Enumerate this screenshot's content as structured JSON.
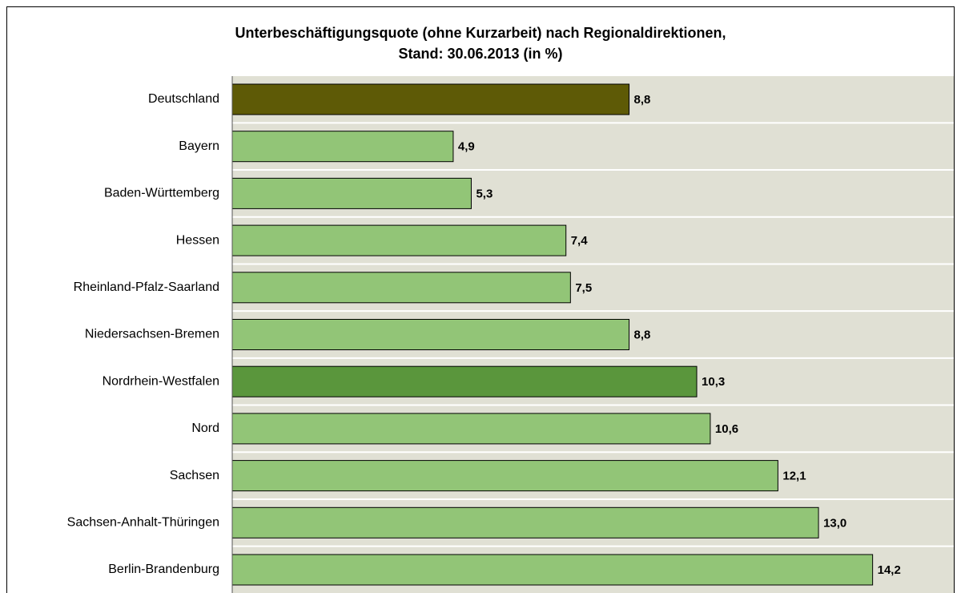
{
  "chart_data": {
    "type": "barh",
    "title": [
      "Unterbeschäftigungsquote (ohne Kurzarbeit) nach Regionaldirektionen,",
      "Stand: 30.06.2013  (in %)"
    ],
    "categories": [
      "Deutschland",
      "Bayern",
      "Baden-Württemberg",
      "Hessen",
      "Rheinland-Pfalz-Saarland",
      "Niedersachsen-Bremen",
      "Nordrhein-Westfalen",
      "Nord",
      "Sachsen",
      "Sachsen-Anhalt-Thüringen",
      "Berlin-Brandenburg"
    ],
    "values": [
      8.8,
      4.9,
      5.3,
      7.4,
      7.5,
      8.8,
      10.3,
      10.6,
      12.1,
      13.0,
      14.2
    ],
    "value_labels": [
      "8,8",
      "4,9",
      "5,3",
      "7,4",
      "7,5",
      "8,8",
      "10,3",
      "10,6",
      "12,1",
      "13,0",
      "14,2"
    ],
    "colors": [
      "#5e5a06",
      "#92c577",
      "#92c577",
      "#92c577",
      "#92c577",
      "#92c577",
      "#5a963c",
      "#92c577",
      "#92c577",
      "#92c577",
      "#92c577"
    ],
    "xlim": [
      0,
      16
    ]
  }
}
